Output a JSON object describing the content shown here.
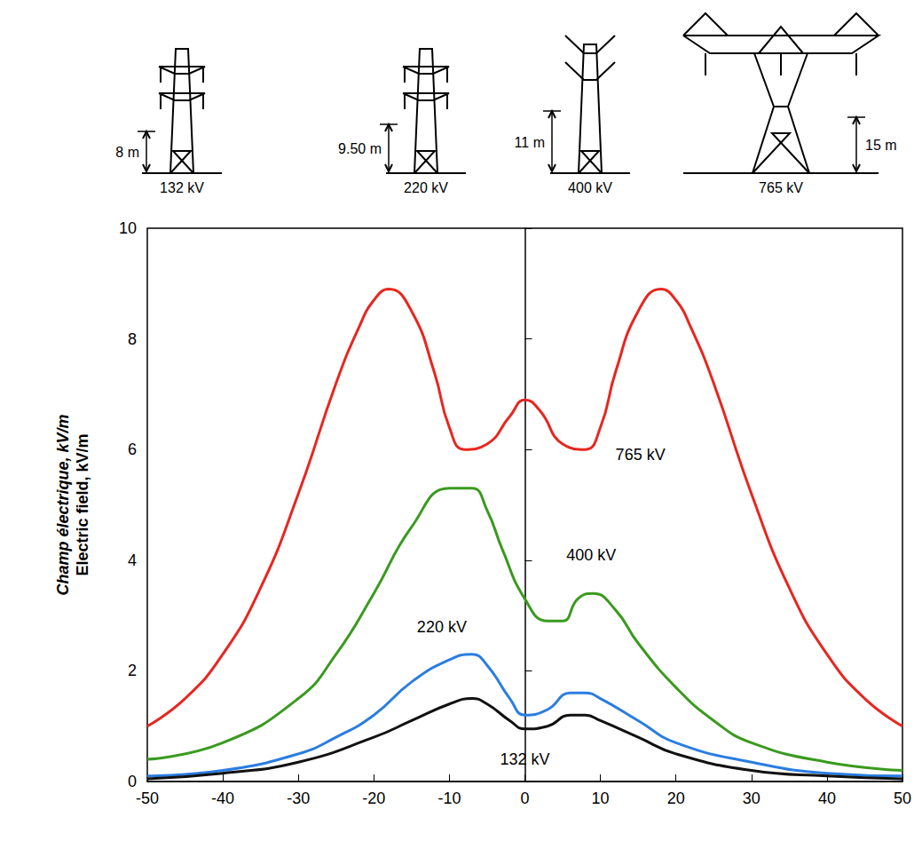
{
  "chart_data": {
    "type": "line",
    "y_label": [
      "Champ électrique, kV/m",
      "Electric field, kV/m"
    ],
    "xlim": [
      -50,
      50
    ],
    "xticks": [
      -50,
      -40,
      -30,
      -20,
      -10,
      0,
      10,
      20,
      30,
      40,
      50
    ],
    "ylim": [
      0,
      10
    ],
    "yticks": [
      0,
      2,
      4,
      6,
      8,
      10
    ],
    "grid": false,
    "line_style": "solid",
    "series": [
      {
        "name": "765 kV",
        "color": "#e8261f",
        "x": [
          -50,
          -45,
          -40,
          -35,
          -30,
          -25,
          -22,
          -20,
          -18,
          -15,
          -12,
          -10,
          -8,
          -5,
          -2,
          0,
          2,
          5,
          8,
          10,
          12,
          15,
          18,
          20,
          22,
          25,
          30,
          35,
          40,
          45,
          50
        ],
        "values": [
          1.0,
          1.5,
          2.3,
          3.5,
          5.2,
          7.2,
          8.2,
          8.7,
          8.9,
          8.5,
          7.4,
          6.4,
          6.0,
          6.1,
          6.6,
          6.9,
          6.7,
          6.1,
          6.0,
          6.4,
          7.4,
          8.5,
          8.9,
          8.7,
          8.2,
          7.2,
          5.2,
          3.5,
          2.3,
          1.5,
          1.0
        ]
      },
      {
        "name": "400 kV",
        "color": "#3a9a1f",
        "x": [
          -50,
          -40,
          -30,
          -25,
          -20,
          -15,
          -10,
          -7,
          -5,
          -3,
          0,
          3,
          5,
          7,
          9,
          12,
          15,
          20,
          25,
          30,
          40,
          50
        ],
        "values": [
          0.4,
          0.7,
          1.5,
          2.3,
          3.4,
          4.6,
          5.3,
          5.3,
          4.9,
          4.2,
          3.3,
          2.9,
          2.9,
          3.3,
          3.4,
          3.1,
          2.5,
          1.7,
          1.1,
          0.7,
          0.35,
          0.2
        ]
      },
      {
        "name": "220 kV",
        "color": "#2a7de1",
        "x": [
          -50,
          -40,
          -30,
          -25,
          -20,
          -15,
          -10,
          -7,
          -5,
          -2,
          0,
          3,
          6,
          8,
          10,
          15,
          20,
          30,
          40,
          50
        ],
        "values": [
          0.1,
          0.2,
          0.5,
          0.8,
          1.2,
          1.8,
          2.2,
          2.3,
          2.1,
          1.5,
          1.2,
          1.3,
          1.6,
          1.6,
          1.5,
          1.1,
          0.7,
          0.35,
          0.15,
          0.1
        ]
      },
      {
        "name": "132 kV",
        "color": "#111111",
        "x": [
          -50,
          -40,
          -30,
          -20,
          -15,
          -10,
          -7,
          -5,
          -2,
          0,
          3,
          6,
          8,
          10,
          15,
          20,
          30,
          40,
          50
        ],
        "values": [
          0.05,
          0.15,
          0.35,
          0.8,
          1.1,
          1.4,
          1.5,
          1.4,
          1.1,
          0.95,
          1.0,
          1.2,
          1.2,
          1.1,
          0.8,
          0.5,
          0.2,
          0.1,
          0.05
        ]
      }
    ],
    "towers": [
      {
        "voltage": "132 kV",
        "height": "8 m"
      },
      {
        "voltage": "220 kV",
        "height": "9.50 m"
      },
      {
        "voltage": "400 kV",
        "height": "11 m"
      },
      {
        "voltage": "765 kV",
        "height": "15 m"
      }
    ]
  }
}
